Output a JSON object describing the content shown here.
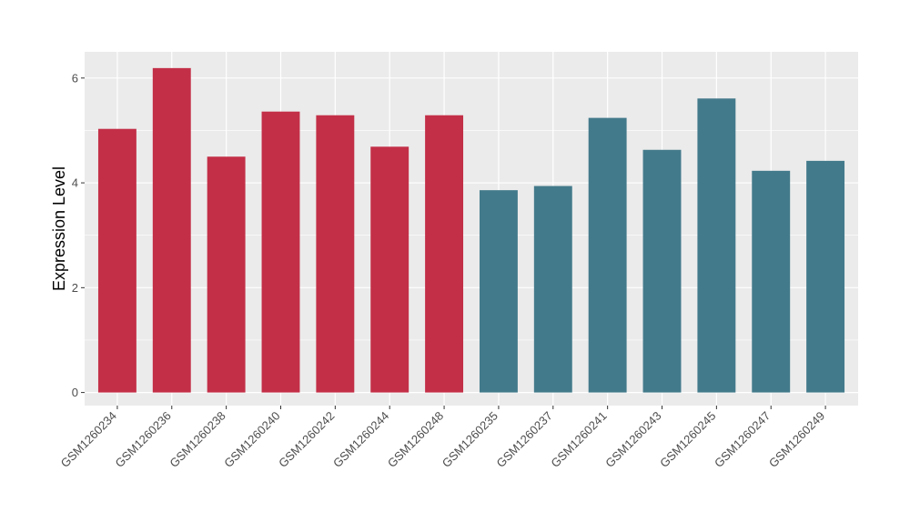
{
  "chart_data": {
    "type": "bar",
    "title": "",
    "xlabel": "",
    "ylabel": "Expression Level",
    "ylim": [
      -0.25,
      6.5
    ],
    "yticks": [
      0,
      2,
      4,
      6
    ],
    "grid": true,
    "legend": "none",
    "categories": [
      "GSM1260234",
      "GSM1260236",
      "GSM1260238",
      "GSM1260240",
      "GSM1260242",
      "GSM1260244",
      "GSM1260248",
      "GSM1260235",
      "GSM1260237",
      "GSM1260241",
      "GSM1260243",
      "GSM1260245",
      "GSM1260247",
      "GSM1260249"
    ],
    "values": [
      5.03,
      6.19,
      4.5,
      5.36,
      5.29,
      4.69,
      5.29,
      3.86,
      3.94,
      5.24,
      4.63,
      5.61,
      4.23,
      4.42
    ],
    "groups": [
      "a",
      "a",
      "a",
      "a",
      "a",
      "a",
      "a",
      "b",
      "b",
      "b",
      "b",
      "b",
      "b",
      "b"
    ],
    "colors": {
      "a": "#c32f47",
      "b": "#437a8b"
    },
    "panel_background": "#ebebeb",
    "gridline_color": "#ffffff"
  }
}
